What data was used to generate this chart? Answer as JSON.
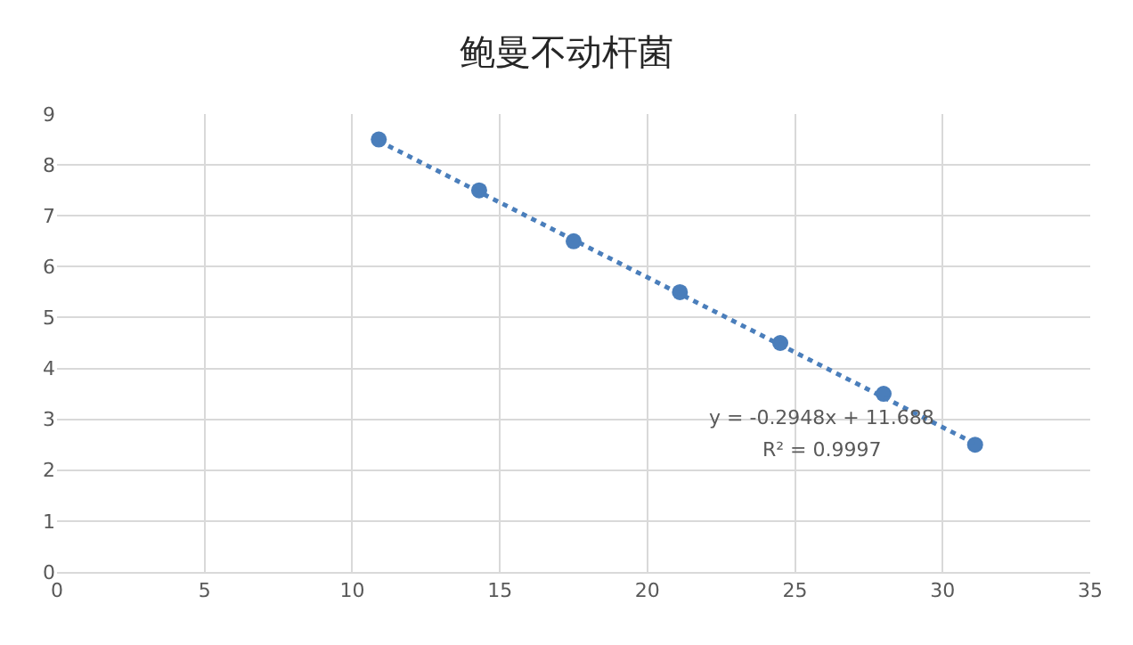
{
  "chart_data": {
    "type": "scatter",
    "title": "鲍曼不动杆菌",
    "series": [
      {
        "color": "#4a7ebb",
        "marker": "circle",
        "x": [
          10.9,
          14.3,
          17.5,
          21.1,
          24.5,
          28.0,
          31.1
        ],
        "values": [
          8.5,
          7.5,
          6.5,
          5.5,
          4.5,
          3.5,
          2.5
        ]
      },
      {
        "type": "line",
        "color": "#4a7ebb",
        "line_style": "dotted",
        "marker": "none",
        "x": [
          10.9,
          31.1
        ],
        "values": [
          8.47,
          2.52
        ]
      }
    ],
    "xlim": [
      0,
      35
    ],
    "xticks": [
      0,
      5,
      10,
      15,
      20,
      25,
      30,
      35
    ],
    "ylim": [
      0,
      9
    ],
    "yticks": [
      0,
      1,
      2,
      3,
      4,
      5,
      6,
      7,
      8,
      9
    ],
    "grid": true,
    "annotations": [
      "y = -0.2948x + 11.688",
      "R² = 0.9997"
    ]
  }
}
